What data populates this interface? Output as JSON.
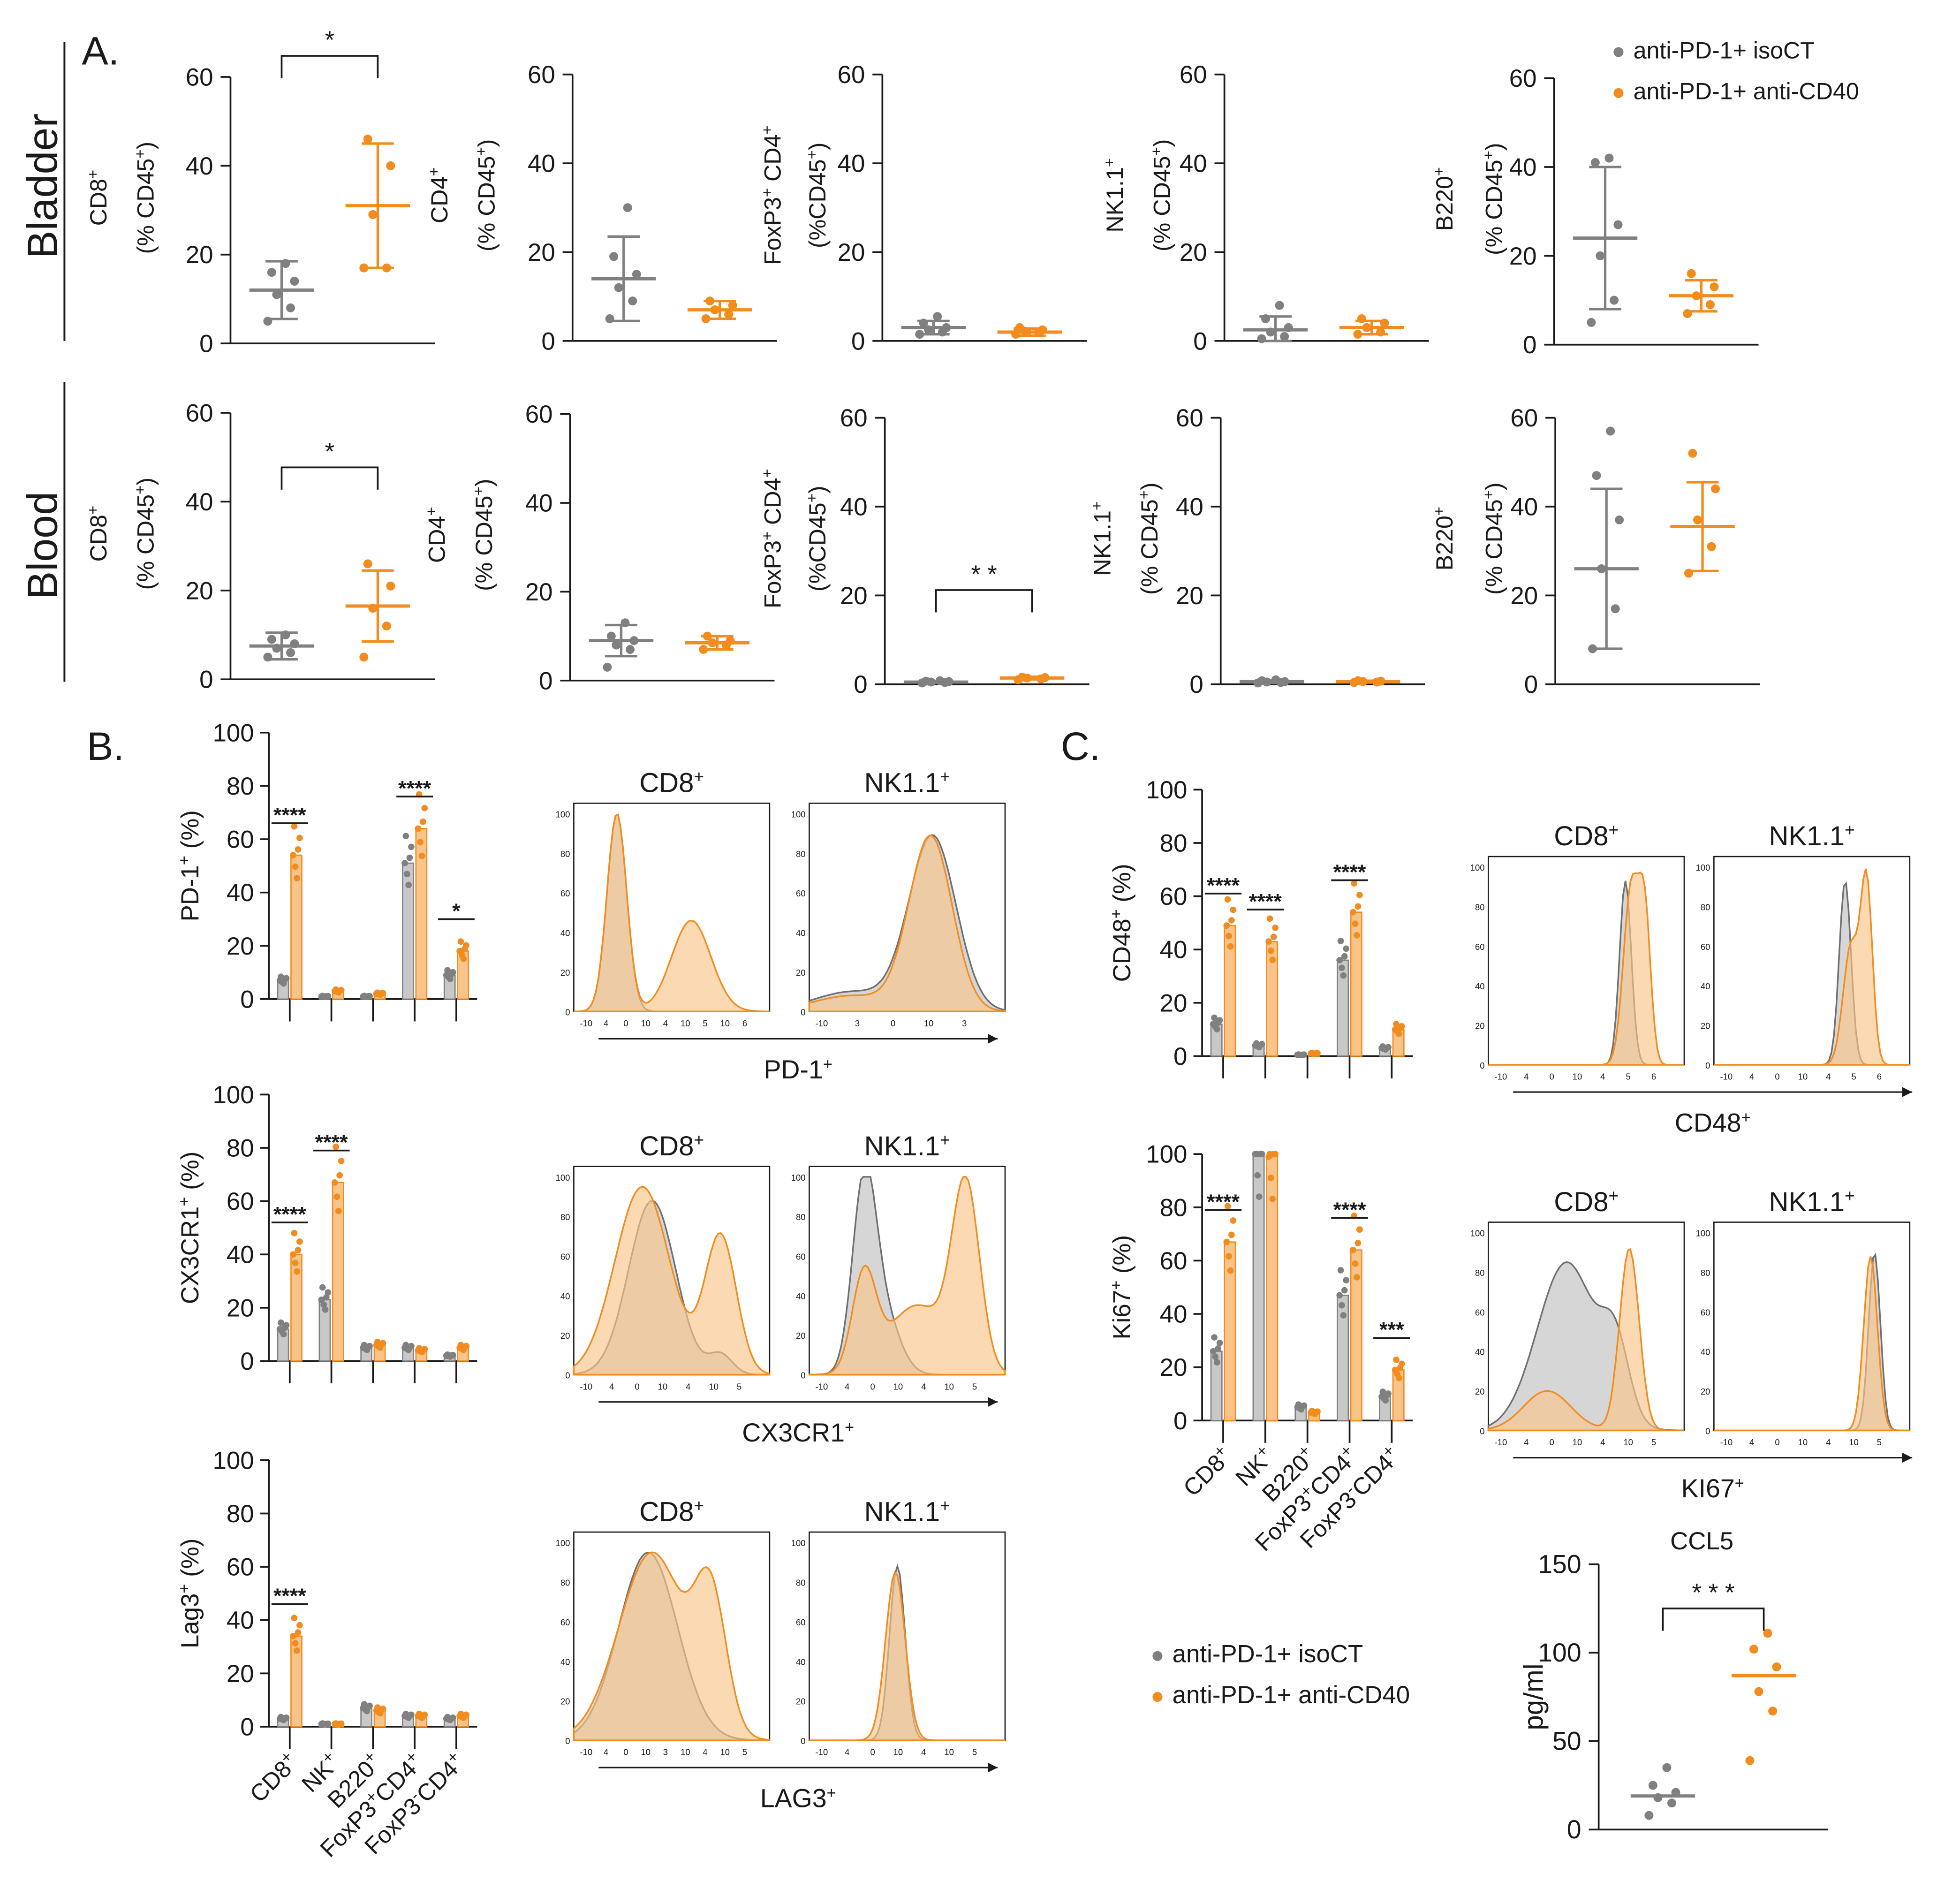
{
  "figure": {
    "panel_labels": {
      "A": "A.",
      "B": "B.",
      "C": "C."
    },
    "row_labels": {
      "bladder": "Bladder",
      "blood": "Blood"
    },
    "legend": {
      "iso": "anti-PD-1+ isoCT",
      "cd40": "anti-PD-1+ anti-CD40"
    },
    "ylabel_suffix": "(% CD45",
    "ylabel_suffix_alt": "(%CD45",
    "colors": {
      "iso": "#808080",
      "cd40": "#f28c1e",
      "iso_fill": "#c8c8c8",
      "cd40_fill": "#f8c48a",
      "overlap": "#c9a184"
    }
  },
  "chart_data": [
    {
      "id": "A-bladder-CD8",
      "type": "scatter",
      "ylabel": "CD8",
      "sup": "+",
      "ylim": [
        0,
        60
      ],
      "ticks": [
        0,
        20,
        40,
        60
      ],
      "groups": [
        {
          "name": "anti-PD-1+ isoCT",
          "points": [
            5,
            8,
            11,
            14,
            16,
            18
          ],
          "mean": 12,
          "sd": 6.5
        },
        {
          "name": "anti-PD-1+ anti-CD40",
          "points": [
            17,
            17,
            29,
            40,
            46
          ],
          "mean": 31,
          "sd": 14
        }
      ],
      "sig": "*"
    },
    {
      "id": "A-bladder-CD4",
      "type": "scatter",
      "ylabel": "CD4",
      "sup": "+",
      "ylim": [
        0,
        60
      ],
      "ticks": [
        0,
        20,
        40,
        60
      ],
      "groups": [
        {
          "name": "anti-PD-1+ isoCT",
          "points": [
            5,
            9,
            12,
            15,
            19,
            30
          ],
          "mean": 14,
          "sd": 9.5
        },
        {
          "name": "anti-PD-1+ anti-CD40",
          "points": [
            5,
            6,
            7,
            8,
            9
          ],
          "mean": 7,
          "sd": 2
        }
      ],
      "sig": ""
    },
    {
      "id": "A-bladder-FoxP3CD4",
      "type": "scatter",
      "ylabel": "FoxP3",
      "sup": "+",
      "ylabel2": "CD4",
      "ylim": [
        0,
        60
      ],
      "ticks": [
        0,
        20,
        40,
        60
      ],
      "groups": [
        {
          "name": "anti-PD-1+ isoCT",
          "points": [
            1.5,
            2,
            2.5,
            3,
            4,
            5.5
          ],
          "mean": 3,
          "sd": 1.5
        },
        {
          "name": "anti-PD-1+ anti-CD40",
          "points": [
            1.5,
            2,
            2.2,
            2.5,
            3
          ],
          "mean": 2,
          "sd": 0.8
        }
      ],
      "sig": ""
    },
    {
      "id": "A-bladder-NK",
      "type": "scatter",
      "ylabel": "NK1.1",
      "sup": "+",
      "ylim": [
        0,
        60
      ],
      "ticks": [
        0,
        20,
        40,
        60
      ],
      "groups": [
        {
          "name": "anti-PD-1+ isoCT",
          "points": [
            0.5,
            1,
            2,
            3,
            5,
            8
          ],
          "mean": 2.5,
          "sd": 3
        },
        {
          "name": "anti-PD-1+ anti-CD40",
          "points": [
            1.5,
            2,
            3,
            4,
            5
          ],
          "mean": 3,
          "sd": 1.5
        }
      ],
      "sig": ""
    },
    {
      "id": "A-bladder-B220",
      "type": "scatter",
      "ylabel": "B220",
      "sup": "+",
      "ylim": [
        0,
        60
      ],
      "ticks": [
        0,
        20,
        40,
        60
      ],
      "groups": [
        {
          "name": "anti-PD-1+ isoCT",
          "points": [
            5,
            10,
            20,
            27,
            41,
            42
          ],
          "mean": 24,
          "sd": 16
        },
        {
          "name": "anti-PD-1+ anti-CD40",
          "points": [
            7,
            9,
            11,
            13,
            16
          ],
          "mean": 11,
          "sd": 3.5
        }
      ],
      "sig": ""
    },
    {
      "id": "A-blood-CD8",
      "type": "scatter",
      "ylabel": "CD8",
      "sup": "+",
      "ylim": [
        0,
        60
      ],
      "ticks": [
        0,
        20,
        40,
        60
      ],
      "groups": [
        {
          "name": "anti-PD-1+ isoCT",
          "points": [
            5,
            6,
            7,
            8,
            9,
            10
          ],
          "mean": 7.5,
          "sd": 3
        },
        {
          "name": "anti-PD-1+ anti-CD40",
          "points": [
            5,
            12,
            16,
            21,
            26
          ],
          "mean": 16.5,
          "sd": 8
        },
        {
          "name": "",
          "points": []
        }
      ],
      "sig": "*"
    },
    {
      "id": "A-blood-CD4",
      "type": "scatter",
      "ylabel": "CD4",
      "sup": "+",
      "ylim": [
        0,
        60
      ],
      "ticks": [
        0,
        20,
        40,
        60
      ],
      "groups": [
        {
          "name": "anti-PD-1+ isoCT",
          "points": [
            3,
            7,
            8,
            9,
            10,
            13
          ],
          "mean": 9,
          "sd": 3.5
        },
        {
          "name": "anti-PD-1+ anti-CD40",
          "points": [
            7,
            8,
            8.5,
            9,
            10
          ],
          "mean": 8.5,
          "sd": 1.5
        }
      ],
      "sig": ""
    },
    {
      "id": "A-blood-FoxP3CD4",
      "type": "scatter",
      "ylabel": "FoxP3",
      "sup": "+",
      "ylabel2": "CD4",
      "ylim": [
        0,
        60
      ],
      "ticks": [
        0,
        20,
        40,
        60
      ],
      "groups": [
        {
          "name": "anti-PD-1+ isoCT",
          "points": [
            0.3,
            0.4,
            0.5,
            0.6,
            0.7,
            0.8
          ],
          "mean": 0.5,
          "sd": 0.2
        },
        {
          "name": "anti-PD-1+ anti-CD40",
          "points": [
            1,
            1.2,
            1.4,
            1.5,
            1.6
          ],
          "mean": 1.4,
          "sd": 0.3
        }
      ],
      "sig": "* *"
    },
    {
      "id": "A-blood-NK",
      "type": "scatter",
      "ylabel": "NK1.1",
      "sup": "+",
      "ylim": [
        0,
        60
      ],
      "ticks": [
        0,
        20,
        40,
        60
      ],
      "groups": [
        {
          "name": "anti-PD-1+ isoCT",
          "points": [
            0.3,
            0.4,
            0.5,
            0.6,
            0.8,
            1
          ],
          "mean": 0.6,
          "sd": 0.3
        },
        {
          "name": "anti-PD-1+ anti-CD40",
          "points": [
            0.4,
            0.5,
            0.6,
            0.7,
            0.8
          ],
          "mean": 0.6,
          "sd": 0.2
        }
      ],
      "sig": ""
    },
    {
      "id": "A-blood-B220",
      "type": "scatter",
      "ylabel": "B220",
      "sup": "+",
      "ylim": [
        0,
        60
      ],
      "ticks": [
        0,
        20,
        40,
        60
      ],
      "groups": [
        {
          "name": "anti-PD-1+ isoCT",
          "points": [
            8,
            17,
            26,
            37,
            47,
            57
          ],
          "mean": 26,
          "sd": 18
        },
        {
          "name": "anti-PD-1+ anti-CD40",
          "points": [
            25,
            31,
            37,
            44,
            52
          ],
          "mean": 35.5,
          "sd": 10
        },
        {
          "name": "",
          "points": []
        }
      ],
      "sig": ""
    },
    {
      "id": "B-PD1",
      "type": "bar",
      "ylabel": "PD-1",
      "ysup": "+",
      "yunit": " (%)",
      "ylim": [
        0,
        100
      ],
      "ticks": [
        0,
        20,
        40,
        60,
        80,
        100
      ],
      "categories": [
        "CD8+",
        "NK+",
        "B220+",
        "FoxP3+CD4+",
        "FoxP3-CD4+"
      ],
      "series": [
        {
          "name": "anti-PD-1+ isoCT",
          "values": [
            7,
            1,
            1,
            51,
            9
          ]
        },
        {
          "name": "anti-PD-1+ anti-CD40",
          "values": [
            54,
            3,
            2,
            64,
            18
          ]
        }
      ],
      "sig": [
        "****",
        "",
        "",
        "****",
        "*"
      ]
    },
    {
      "id": "B-CX3CR1",
      "type": "bar",
      "ylabel": "CX3CR1",
      "ysup": "+",
      "yunit": " (%)",
      "ylim": [
        0,
        100
      ],
      "ticks": [
        0,
        20,
        40,
        60,
        80,
        100
      ],
      "categories": [
        "CD8+",
        "NK+",
        "B220+",
        "FoxP3+CD4+",
        "FoxP3-CD4+"
      ],
      "series": [
        {
          "name": "anti-PD-1+ isoCT",
          "values": [
            12,
            23,
            5,
            5,
            2
          ]
        },
        {
          "name": "anti-PD-1+ anti-CD40",
          "values": [
            40,
            67,
            6,
            4,
            5
          ]
        }
      ],
      "sig": [
        "****",
        "****",
        "",
        "",
        ""
      ]
    },
    {
      "id": "B-LAG3",
      "type": "bar",
      "ylabel": "Lag3",
      "ysup": "+",
      "yunit": " (%)",
      "ylim": [
        0,
        100
      ],
      "ticks": [
        0,
        20,
        40,
        60,
        80,
        100
      ],
      "categories": [
        "CD8+",
        "NK+",
        "B220+",
        "FoxP3+CD4+",
        "FoxP3-CD4+"
      ],
      "series": [
        {
          "name": "anti-PD-1+ isoCT",
          "values": [
            3,
            1,
            7,
            4,
            3
          ]
        },
        {
          "name": "anti-PD-1+ anti-CD40",
          "values": [
            34,
            1,
            6,
            4,
            4
          ]
        }
      ],
      "sig": [
        "****",
        "",
        "",
        "",
        ""
      ]
    },
    {
      "id": "C-CD48",
      "type": "bar",
      "ylabel": "CD48",
      "ysup": "+",
      "yunit": " (%)",
      "ylim": [
        0,
        100
      ],
      "ticks": [
        0,
        20,
        40,
        60,
        80,
        100
      ],
      "categories": [
        "CD8+",
        "NK+",
        "B220+",
        "FoxP3+CD4+",
        "FoxP3-CD4+"
      ],
      "series": [
        {
          "name": "anti-PD-1+ isoCT",
          "values": [
            12,
            4,
            0.5,
            36,
            3
          ]
        },
        {
          "name": "anti-PD-1+ anti-CD40",
          "values": [
            49,
            43,
            1,
            54,
            10
          ]
        }
      ],
      "sig": [
        "****",
        "****",
        "",
        "****",
        ""
      ]
    },
    {
      "id": "C-Ki67",
      "type": "bar",
      "ylabel": "Ki67",
      "ysup": "+",
      "yunit": " (%)",
      "ylim": [
        0,
        100
      ],
      "ticks": [
        0,
        20,
        40,
        60,
        80,
        100
      ],
      "categories": [
        "CD8+",
        "NK+",
        "B220+",
        "FoxP3+CD4+",
        "FoxP3-CD4+"
      ],
      "series": [
        {
          "name": "anti-PD-1+ isoCT",
          "values": [
            26,
            100,
            5,
            47,
            9
          ]
        },
        {
          "name": "anti-PD-1+ anti-CD40",
          "values": [
            67,
            99,
            3,
            64,
            19
          ]
        }
      ],
      "sig": [
        "****",
        "",
        "",
        "****",
        "***"
      ]
    },
    {
      "id": "C-CCL5",
      "type": "scatter",
      "title": "CCL5",
      "ylabel": "pg/ml",
      "ylim": [
        0,
        150
      ],
      "ticks": [
        0,
        50,
        100,
        150
      ],
      "groups": [
        {
          "name": "anti-PD-1+ isoCT",
          "points": [
            8,
            15,
            18,
            21,
            25,
            35
          ],
          "mean": 19
        },
        {
          "name": "anti-PD-1+ anti-CD40",
          "points": [
            39,
            67,
            78,
            92,
            102,
            111
          ],
          "mean": 87
        }
      ],
      "sig": "* * *"
    },
    {
      "id": "H-PD1-CD8",
      "type": "histogram",
      "title": "CD8",
      "tsup": "+",
      "axis": "PD-1",
      "asup": "+",
      "ylim": [
        0,
        100
      ],
      "yticks": [
        0,
        20,
        40,
        60,
        80,
        100
      ],
      "xticks": [
        "-10",
        "4",
        "0",
        "10",
        "4",
        "10",
        "5",
        "10",
        "6"
      ],
      "peaks_iso": [
        [
          0.22,
          1.0,
          0.05
        ]
      ],
      "peaks_cd40": [
        [
          0.22,
          1.0,
          0.05
        ],
        [
          0.6,
          0.46,
          0.1
        ]
      ]
    },
    {
      "id": "H-PD1-NK",
      "type": "histogram",
      "title": "NK1.1",
      "tsup": "+",
      "ylim": [
        0,
        100
      ],
      "xticks": [
        "-10",
        "3",
        "0",
        "10",
        "3"
      ],
      "peaks_iso": [
        [
          0.22,
          0.1,
          0.2
        ],
        [
          0.63,
          0.88,
          0.12
        ]
      ],
      "peaks_cd40": [
        [
          0.22,
          0.08,
          0.2
        ],
        [
          0.62,
          0.88,
          0.11
        ]
      ]
    },
    {
      "id": "H-CX3CR1-CD8",
      "type": "histogram",
      "title": "CD8",
      "tsup": "+",
      "axis": "CX3CR1",
      "asup": "+",
      "ylim": [
        0,
        100
      ],
      "xticks": [
        "-10",
        "4",
        "0",
        "10",
        "4",
        "10",
        "5"
      ],
      "peaks_iso": [
        [
          0.4,
          0.88,
          0.12
        ],
        [
          0.75,
          0.1,
          0.06
        ]
      ],
      "peaks_cd40": [
        [
          0.35,
          0.95,
          0.14
        ],
        [
          0.75,
          0.7,
          0.08
        ]
      ]
    },
    {
      "id": "H-CX3CR1-NK",
      "type": "histogram",
      "title": "NK1.1",
      "tsup": "+",
      "ylim": [
        0,
        100
      ],
      "xticks": [
        "-10",
        "4",
        "0",
        "10",
        "4",
        "10",
        "5"
      ],
      "peaks_iso": [
        [
          0.28,
          0.92,
          0.06
        ],
        [
          0.38,
          0.3,
          0.08
        ]
      ],
      "peaks_cd40": [
        [
          0.28,
          0.48,
          0.06
        ],
        [
          0.55,
          0.35,
          0.15
        ],
        [
          0.8,
          0.92,
          0.07
        ]
      ]
    },
    {
      "id": "H-LAG3-CD8",
      "type": "histogram",
      "title": "CD8",
      "tsup": "+",
      "axis": "LAG3",
      "asup": "+",
      "ylim": [
        0,
        100
      ],
      "xticks": [
        "-10",
        "4",
        "0",
        "10",
        "3",
        "10",
        "4",
        "10",
        "5"
      ],
      "peaks_iso": [
        [
          0.38,
          0.95,
          0.15
        ]
      ],
      "peaks_cd40": [
        [
          0.4,
          0.95,
          0.17
        ],
        [
          0.7,
          0.65,
          0.08
        ]
      ]
    },
    {
      "id": "H-LAG3-NK",
      "type": "histogram",
      "title": "NK1.1",
      "tsup": "+",
      "ylim": [
        0,
        100
      ],
      "xticks": [
        "-10",
        "4",
        "0",
        "10",
        "4",
        "10",
        "5"
      ],
      "peaks_iso": [
        [
          0.45,
          0.88,
          0.04
        ]
      ],
      "peaks_cd40": [
        [
          0.44,
          0.85,
          0.05
        ]
      ]
    },
    {
      "id": "H-CD48-CD8",
      "type": "histogram",
      "title": "CD8",
      "tsup": "+",
      "axis": "CD48",
      "asup": "+",
      "ylim": [
        0,
        100
      ],
      "xticks": [
        "-10",
        "4",
        "0",
        "10",
        "4",
        "5",
        "6"
      ],
      "peaks_iso": [
        [
          0.7,
          0.93,
          0.03
        ]
      ],
      "peaks_cd40": [
        [
          0.73,
          0.9,
          0.04
        ],
        [
          0.8,
          0.7,
          0.03
        ]
      ]
    },
    {
      "id": "H-CD48-NK",
      "type": "histogram",
      "title": "NK1.1",
      "tsup": "+",
      "ylim": [
        0,
        100
      ],
      "xticks": [
        "-10",
        "4",
        "0",
        "10",
        "4",
        "5",
        "6"
      ],
      "peaks_iso": [
        [
          0.67,
          0.93,
          0.03
        ]
      ],
      "peaks_cd40": [
        [
          0.7,
          0.6,
          0.04
        ],
        [
          0.78,
          0.9,
          0.03
        ]
      ]
    },
    {
      "id": "H-KI67-CD8",
      "type": "histogram",
      "title": "CD8",
      "tsup": "+",
      "axis": "KI67",
      "asup": "+",
      "ylim": [
        0,
        100
      ],
      "xticks": [
        "-10",
        "4",
        "0",
        "10",
        "4",
        "10",
        "5"
      ],
      "peaks_iso": [
        [
          0.4,
          0.85,
          0.15
        ],
        [
          0.65,
          0.35,
          0.07
        ]
      ],
      "peaks_cd40": [
        [
          0.3,
          0.2,
          0.12
        ],
        [
          0.72,
          0.92,
          0.05
        ]
      ]
    },
    {
      "id": "H-KI67-NK",
      "type": "histogram",
      "title": "NK1.1",
      "tsup": "+",
      "ylim": [
        0,
        100
      ],
      "xticks": [
        "-10",
        "4",
        "0",
        "10",
        "4",
        "10",
        "5"
      ],
      "peaks_iso": [
        [
          0.82,
          0.9,
          0.03
        ]
      ],
      "peaks_cd40": [
        [
          0.8,
          0.88,
          0.035
        ]
      ]
    }
  ]
}
